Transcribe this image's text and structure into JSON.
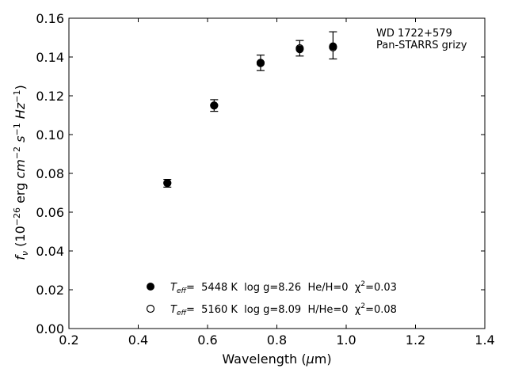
{
  "chart_data": {
    "type": "scatter",
    "xlabel": "Wavelength (μm)",
    "ylabel": "f_ν (10^-26 erg cm^-2 s^-1 Hz^-1)",
    "xlim": [
      0.2,
      1.4
    ],
    "ylim": [
      0.0,
      0.16
    ],
    "x_ticks": [
      "0.2",
      "0.4",
      "0.6",
      "0.8",
      "1.0",
      "1.2",
      "1.4"
    ],
    "y_ticks": [
      "0.00",
      "0.02",
      "0.04",
      "0.06",
      "0.08",
      "0.10",
      "0.12",
      "0.14",
      "0.16"
    ],
    "grid": false,
    "annotation": [
      "WD 1722+579",
      "Pan-STARRS grizy"
    ],
    "legend_position": "bottom-center",
    "observed": {
      "x": [
        0.484,
        0.619,
        0.753,
        0.866,
        0.962
      ],
      "y": [
        0.0749,
        0.115,
        0.137,
        0.1445,
        0.146
      ],
      "yerr": [
        0.002,
        0.003,
        0.004,
        0.004,
        0.007
      ]
    },
    "series": [
      {
        "name": "T_eff= 5448 K  log g=8.26  He/H=0  χ²=0.03",
        "marker": "filled-circle",
        "x": [
          0.484,
          0.619,
          0.753,
          0.866,
          0.962
        ],
        "y": [
          0.075,
          0.115,
          0.1368,
          0.144,
          0.1455
        ]
      },
      {
        "name": "T_eff= 5160 K  log g=8.09  H/He=0  χ²=0.08",
        "marker": "open-circle",
        "x": [
          0.484,
          0.619,
          0.753,
          0.866,
          0.962
        ],
        "y": [
          0.075,
          0.115,
          0.137,
          0.1445,
          0.145
        ]
      }
    ],
    "legend": [
      {
        "teff_label": "T",
        "teff_sub": "eff",
        "rest": "=  5448 K  log g=8.26  He/H=0  χ",
        "chi_sup": "2",
        "chi_val": "=0.03",
        "marker": "filled"
      },
      {
        "teff_label": "T",
        "teff_sub": "eff",
        "rest": "=  5160 K  log g=8.09  H/He=0  χ",
        "chi_sup": "2",
        "chi_val": "=0.08",
        "marker": "open"
      }
    ]
  }
}
